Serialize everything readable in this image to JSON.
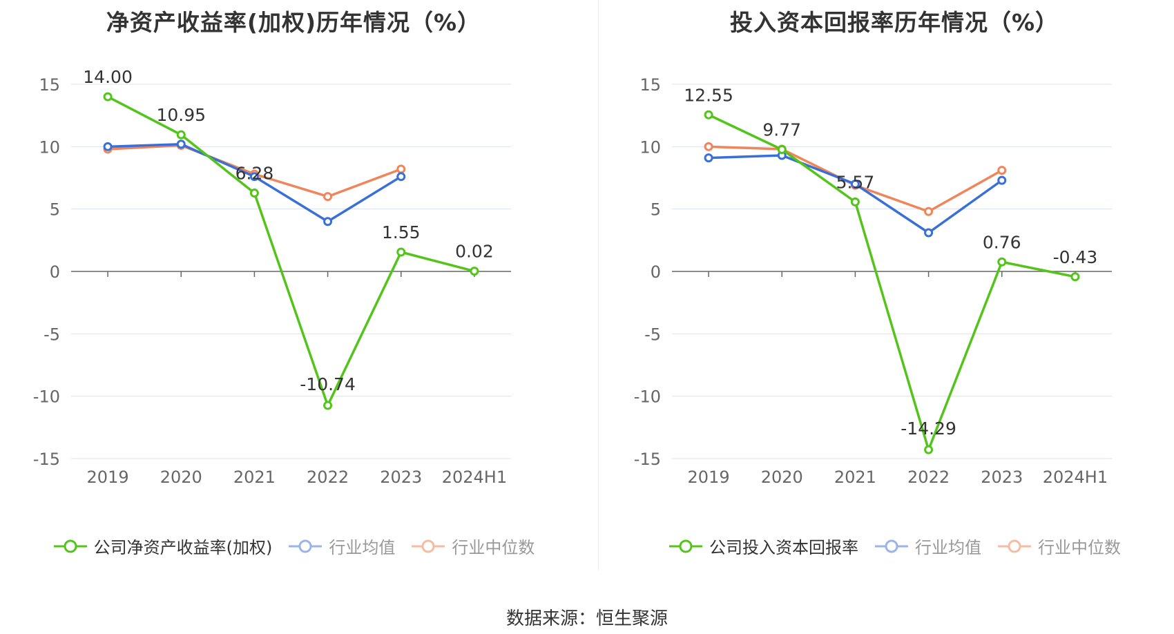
{
  "source_label": "数据来源：恒生聚源",
  "colors": {
    "company": "#52c41a",
    "industry_avg": "#3a6fd8",
    "industry_median": "#f0855b"
  },
  "chart_data": [
    {
      "type": "line",
      "title": "净资产收益率(加权)历年情况（%）",
      "categories": [
        "2019",
        "2020",
        "2021",
        "2022",
        "2023",
        "2024H1"
      ],
      "ylim": [
        -15,
        15
      ],
      "yticks": [
        15,
        10,
        5,
        0,
        -5,
        -10,
        -15
      ],
      "grid": true,
      "legend_position": "bottom",
      "series": [
        {
          "name": "公司净资产收益率(加权)",
          "key": "company",
          "values": [
            14.0,
            10.95,
            6.28,
            -10.74,
            1.55,
            0.02
          ],
          "labels": [
            "14.00",
            "10.95",
            "6.28",
            "-10.74",
            "1.55",
            "0.02"
          ]
        },
        {
          "name": "行业均值",
          "key": "industry_avg",
          "values": [
            10.0,
            10.2,
            7.6,
            4.0,
            7.6,
            null
          ]
        },
        {
          "name": "行业中位数",
          "key": "industry_median",
          "values": [
            9.8,
            10.1,
            7.8,
            6.0,
            8.2,
            null
          ]
        }
      ]
    },
    {
      "type": "line",
      "title": "投入资本回报率历年情况（%）",
      "categories": [
        "2019",
        "2020",
        "2021",
        "2022",
        "2023",
        "2024H1"
      ],
      "ylim": [
        -15,
        15
      ],
      "yticks": [
        15,
        10,
        5,
        0,
        -5,
        -10,
        -15
      ],
      "grid": true,
      "legend_position": "bottom",
      "series": [
        {
          "name": "公司投入资本回报率",
          "key": "company",
          "values": [
            12.55,
            9.77,
            5.57,
            -14.29,
            0.76,
            -0.43
          ],
          "labels": [
            "12.55",
            "9.77",
            "5.57",
            "-14.29",
            "0.76",
            "-0.43"
          ]
        },
        {
          "name": "行业均值",
          "key": "industry_avg",
          "values": [
            9.1,
            9.3,
            7.0,
            3.1,
            7.3,
            null
          ]
        },
        {
          "name": "行业中位数",
          "key": "industry_median",
          "values": [
            10.0,
            9.8,
            6.9,
            4.8,
            8.1,
            null
          ]
        }
      ]
    }
  ]
}
